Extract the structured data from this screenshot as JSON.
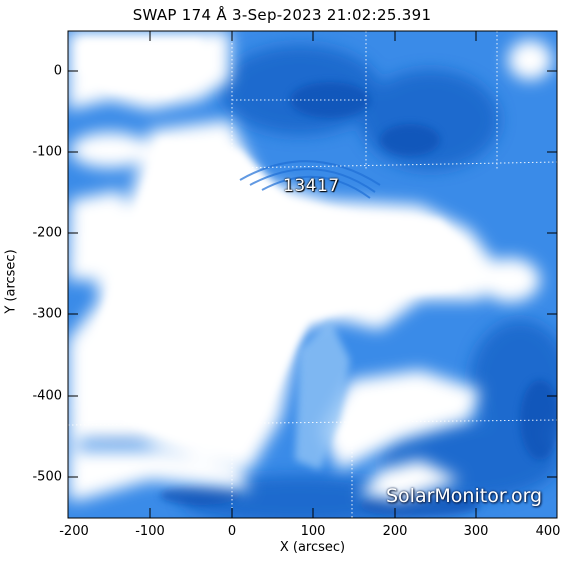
{
  "title": "SWAP 174 Å  3-Sep-2023 21:02:25.391",
  "x_axis": {
    "label": "X (arcsec)",
    "ticks": [
      "-200",
      "-100",
      "0",
      "100",
      "200",
      "300",
      "400"
    ]
  },
  "y_axis": {
    "label": "Y (arcsec)",
    "ticks": [
      "0",
      "-100",
      "-200",
      "-300",
      "-400",
      "-500"
    ]
  },
  "active_region": {
    "number": "13417"
  },
  "watermark": "SolarMonitor.org",
  "colors": {
    "saturated": "#ffffff",
    "mid": "#3f91ea",
    "deep": "#0b4fb3",
    "frame": "#000000"
  },
  "grid": true
}
